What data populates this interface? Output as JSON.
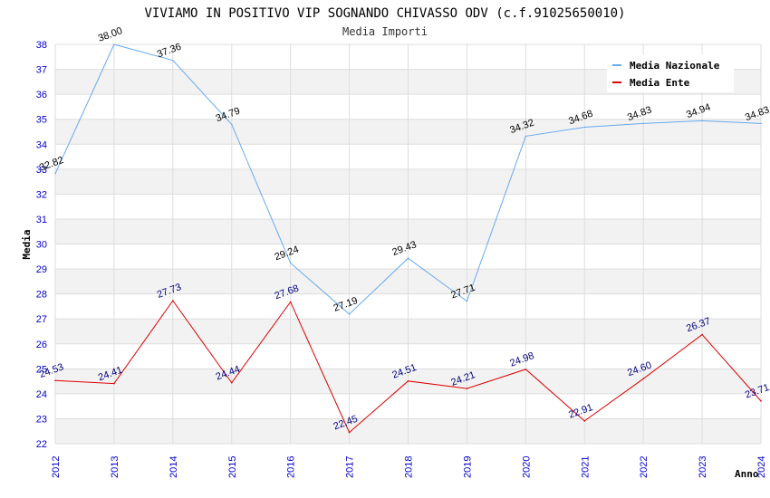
{
  "chart_data": {
    "type": "line",
    "title": "VIVIAMO IN POSITIVO VIP SOGNANDO CHIVASSO ODV (c.f.91025650010)",
    "subtitle": "Media Importi",
    "xlabel": "Anno",
    "ylabel": "Media",
    "ylim": [
      22,
      38
    ],
    "grid": true,
    "legend_position": "top-right",
    "x": [
      "2012",
      "2013",
      "2014",
      "2015",
      "2016",
      "2017",
      "2018",
      "2019",
      "2020",
      "2021",
      "2022",
      "2023",
      "2024"
    ],
    "y_ticks": [
      "22",
      "23",
      "24",
      "25",
      "26",
      "27",
      "28",
      "29",
      "30",
      "31",
      "32",
      "33",
      "34",
      "35",
      "36",
      "37",
      "38"
    ],
    "series": [
      {
        "name": "Media Nazionale",
        "color": "#66aaee",
        "label_color": "#000000",
        "values": [
          32.82,
          38.0,
          37.36,
          34.79,
          29.24,
          27.19,
          29.43,
          27.71,
          34.32,
          34.68,
          34.83,
          34.94,
          34.83
        ],
        "labels": [
          "32.82",
          "38.00",
          "37.36",
          "34.79",
          "29.24",
          "27.19",
          "29.43",
          "27.71",
          "34.32",
          "34.68",
          "34.83",
          "34.94",
          "34.83"
        ]
      },
      {
        "name": "Media Ente",
        "color": "#dd0000",
        "label_color": "#000080",
        "values": [
          24.53,
          24.41,
          27.73,
          24.44,
          27.68,
          22.45,
          24.51,
          24.21,
          24.98,
          22.91,
          24.6,
          26.37,
          23.71
        ],
        "labels": [
          "24.53",
          "24.41",
          "27.73",
          "24.44",
          "27.68",
          "22.45",
          "24.51",
          "24.21",
          "24.98",
          "22.91",
          "24.60",
          "26.37",
          "23.71"
        ]
      }
    ]
  }
}
